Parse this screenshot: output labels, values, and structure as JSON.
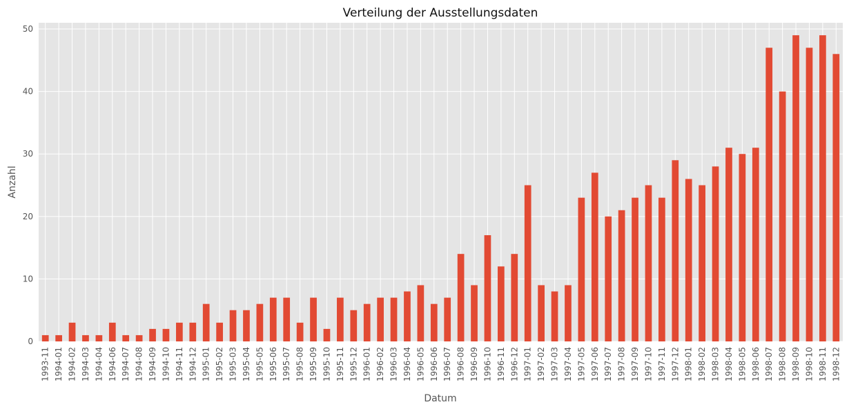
{
  "chart_data": {
    "type": "bar",
    "title": "Verteilung der Ausstellungsdaten",
    "xlabel": "Datum",
    "ylabel": "Anzahl",
    "ylim": [
      0,
      51
    ],
    "yticks": [
      0,
      10,
      20,
      30,
      40,
      50
    ],
    "grid": true,
    "bar_color": "#E24A33",
    "plot_background": "#E5E5E5",
    "grid_color": "#FFFFFF",
    "categories": [
      "1993-11",
      "1994-01",
      "1994-02",
      "1994-03",
      "1994-04",
      "1994-06",
      "1994-07",
      "1994-08",
      "1994-09",
      "1994-10",
      "1994-11",
      "1994-12",
      "1995-01",
      "1995-02",
      "1995-03",
      "1995-04",
      "1995-05",
      "1995-06",
      "1995-07",
      "1995-08",
      "1995-09",
      "1995-10",
      "1995-11",
      "1995-12",
      "1996-01",
      "1996-02",
      "1996-03",
      "1996-04",
      "1996-05",
      "1996-06",
      "1996-07",
      "1996-08",
      "1996-09",
      "1996-10",
      "1996-11",
      "1996-12",
      "1997-01",
      "1997-02",
      "1997-03",
      "1997-04",
      "1997-05",
      "1997-06",
      "1997-07",
      "1997-08",
      "1997-09",
      "1997-10",
      "1997-11",
      "1997-12",
      "1998-01",
      "1998-02",
      "1998-03",
      "1998-04",
      "1998-05",
      "1998-06",
      "1998-07",
      "1998-08",
      "1998-09",
      "1998-10",
      "1998-11",
      "1998-12"
    ],
    "values": [
      1,
      1,
      3,
      1,
      1,
      3,
      1,
      1,
      2,
      2,
      3,
      3,
      6,
      3,
      5,
      5,
      6,
      7,
      7,
      3,
      7,
      2,
      7,
      5,
      6,
      7,
      7,
      8,
      9,
      6,
      7,
      14,
      9,
      17,
      12,
      14,
      25,
      9,
      8,
      9,
      23,
      27,
      20,
      21,
      23,
      25,
      23,
      29,
      26,
      25,
      28,
      31,
      30,
      31,
      47,
      40,
      49,
      47,
      49,
      46
    ]
  }
}
